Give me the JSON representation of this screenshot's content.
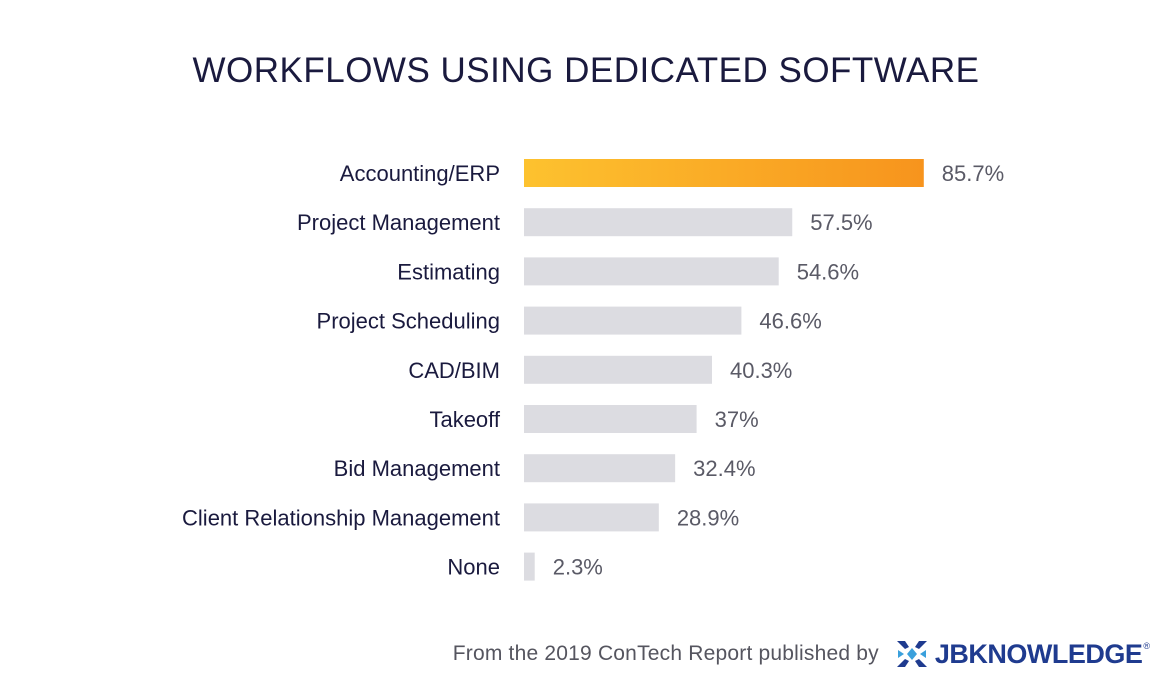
{
  "chart_data": {
    "type": "bar",
    "orientation": "horizontal",
    "title": "WORKFLOWS USING DEDICATED SOFTWARE",
    "categories": [
      "Accounting/ERP",
      "Project Management",
      "Estimating",
      "Project Scheduling",
      "CAD/BIM",
      "Takeoff",
      "Bid Management",
      "Client Relationship Management",
      "None"
    ],
    "values": [
      85.7,
      57.5,
      54.6,
      46.6,
      40.3,
      37,
      32.4,
      28.9,
      2.3
    ],
    "value_labels": [
      "85.7%",
      "57.5%",
      "54.6%",
      "46.6%",
      "40.3%",
      "37%",
      "32.4%",
      "28.9%",
      "2.3%"
    ],
    "xlim": [
      0,
      100
    ],
    "grid": false,
    "legend": "none",
    "colors": {
      "highlight_start": "#fdc22f",
      "highlight_end": "#f7941d",
      "bar": "#dcdce1",
      "category_text": "#1a1a3e",
      "value_text": "#5a5a66"
    }
  },
  "footer": {
    "text": "From the 2019 ConTech Report published by",
    "logo_text": "JBKNOWLEDGE",
    "logo_icon": "jbknowledge-logo-icon",
    "logo_mark": "®"
  }
}
